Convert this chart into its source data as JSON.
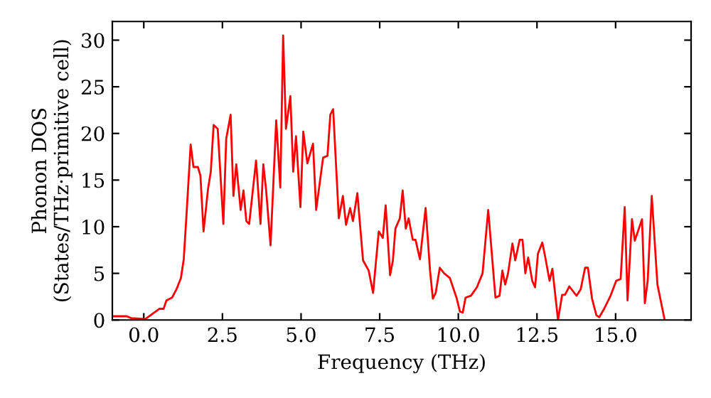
{
  "chart_data": {
    "type": "line",
    "xlabel": "Frequency (THz)",
    "ylabel": "Phonon DOS\n(States/THz·primitive cell)",
    "xlim": [
      -1.0,
      17.4
    ],
    "ylim": [
      0,
      32
    ],
    "xticks": [
      {
        "value": 0,
        "label": "0.0"
      },
      2.5,
      {
        "value": 5,
        "label": "5.0"
      },
      7.5,
      {
        "value": 10,
        "label": "10.0"
      },
      12.5,
      {
        "value": 15,
        "label": "15.0"
      }
    ],
    "yticks": [
      0,
      5,
      10,
      15,
      20,
      25,
      30
    ],
    "grid": false,
    "marker": "none",
    "line_style": "solid",
    "series": [
      {
        "color": "#ff0000",
        "x": [
          -1.0,
          -0.54,
          -0.4,
          0.05,
          0.5,
          0.63,
          0.72,
          0.9,
          1.04,
          1.18,
          1.27,
          1.36,
          1.49,
          1.58,
          1.72,
          1.8,
          1.9,
          2.04,
          2.13,
          2.22,
          2.35,
          2.53,
          2.62,
          2.76,
          2.85,
          2.94,
          3.08,
          3.17,
          3.26,
          3.35,
          3.57,
          3.71,
          3.8,
          3.89,
          4.03,
          4.21,
          4.34,
          4.43,
          4.52,
          4.66,
          4.75,
          4.84,
          4.98,
          5.07,
          5.2,
          5.38,
          5.48,
          5.7,
          5.84,
          5.93,
          6.02,
          6.2,
          6.33,
          6.43,
          6.56,
          6.65,
          6.79,
          6.97,
          7.15,
          7.29,
          7.47,
          7.6,
          7.69,
          7.83,
          7.92,
          8.0,
          8.14,
          8.23,
          8.33,
          8.42,
          8.55,
          8.64,
          8.78,
          8.96,
          9.1,
          9.19,
          9.28,
          9.41,
          9.55,
          9.73,
          9.95,
          10.05,
          10.14,
          10.23,
          10.4,
          10.59,
          10.77,
          10.95,
          11.18,
          11.31,
          11.4,
          11.49,
          11.58,
          11.72,
          11.81,
          11.95,
          12.04,
          12.13,
          12.22,
          12.35,
          12.44,
          12.53,
          12.67,
          12.76,
          12.9,
          12.99,
          13.17,
          13.3,
          13.39,
          13.53,
          13.62,
          13.76,
          13.89,
          14.03,
          14.12,
          14.25,
          14.39,
          14.48,
          14.62,
          14.84,
          15.02,
          15.16,
          15.29,
          15.38,
          15.52,
          15.61,
          15.84,
          15.93,
          16.02,
          16.15,
          16.33,
          16.56
        ],
        "values": [
          0.4,
          0.4,
          0.2,
          0.1,
          1.2,
          1.2,
          2.1,
          2.4,
          3.3,
          4.5,
          6.5,
          11.4,
          18.8,
          16.4,
          16.4,
          15.5,
          9.5,
          14.0,
          15.9,
          20.9,
          20.5,
          10.3,
          19.4,
          22.0,
          13.3,
          16.7,
          11.8,
          13.9,
          10.6,
          10.3,
          17.1,
          10.3,
          16.7,
          13.9,
          8.0,
          21.4,
          14.2,
          30.5,
          20.5,
          24.0,
          15.9,
          19.7,
          12.1,
          20.2,
          16.8,
          18.9,
          11.8,
          17.4,
          17.6,
          22.0,
          22.6,
          10.9,
          13.3,
          10.2,
          12.0,
          10.6,
          13.6,
          6.4,
          5.3,
          2.9,
          9.5,
          8.8,
          12.3,
          4.8,
          6.4,
          9.8,
          10.9,
          13.9,
          9.8,
          10.9,
          8.6,
          8.6,
          6.5,
          12.0,
          5.3,
          2.3,
          2.9,
          5.6,
          5.0,
          4.5,
          2.3,
          0.9,
          0.8,
          2.4,
          2.6,
          3.5,
          5.0,
          11.8,
          2.4,
          2.6,
          5.3,
          3.8,
          5.0,
          8.2,
          6.4,
          8.6,
          8.6,
          5.0,
          6.7,
          4.2,
          3.5,
          7.1,
          8.3,
          6.8,
          4.2,
          5.5,
          0.0,
          2.7,
          2.7,
          3.6,
          3.2,
          2.6,
          3.3,
          5.6,
          5.6,
          2.3,
          0.5,
          0.3,
          1.1,
          2.6,
          4.2,
          4.4,
          12.1,
          2.1,
          10.8,
          8.5,
          10.8,
          1.8,
          4.2,
          13.3,
          3.8,
          0.0
        ]
      }
    ]
  }
}
